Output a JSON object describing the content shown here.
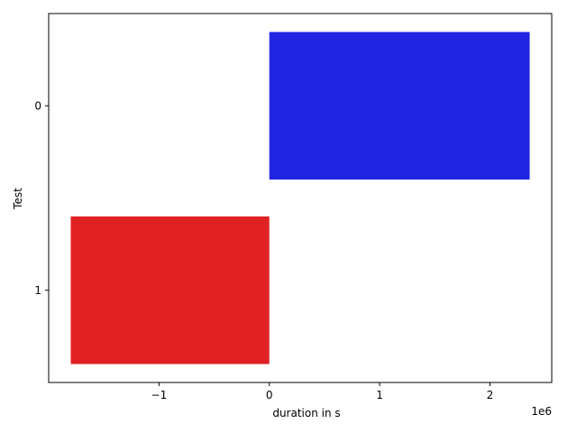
{
  "chart_data": {
    "type": "bar",
    "orientation": "horizontal",
    "categories": [
      "0",
      "1"
    ],
    "values": [
      2360000,
      -1800000
    ],
    "colors": [
      "#2124e0",
      "#e02124"
    ],
    "title": "",
    "xlabel": "duration in s",
    "ylabel": "Test",
    "x_ticks": [
      -1,
      0,
      1,
      2
    ],
    "x_tick_labels": [
      "−1",
      "0",
      "1",
      "2"
    ],
    "x_offset_label": "1e6",
    "xlim": [
      -2000000,
      2560000
    ],
    "grid": false,
    "legend": "none"
  }
}
